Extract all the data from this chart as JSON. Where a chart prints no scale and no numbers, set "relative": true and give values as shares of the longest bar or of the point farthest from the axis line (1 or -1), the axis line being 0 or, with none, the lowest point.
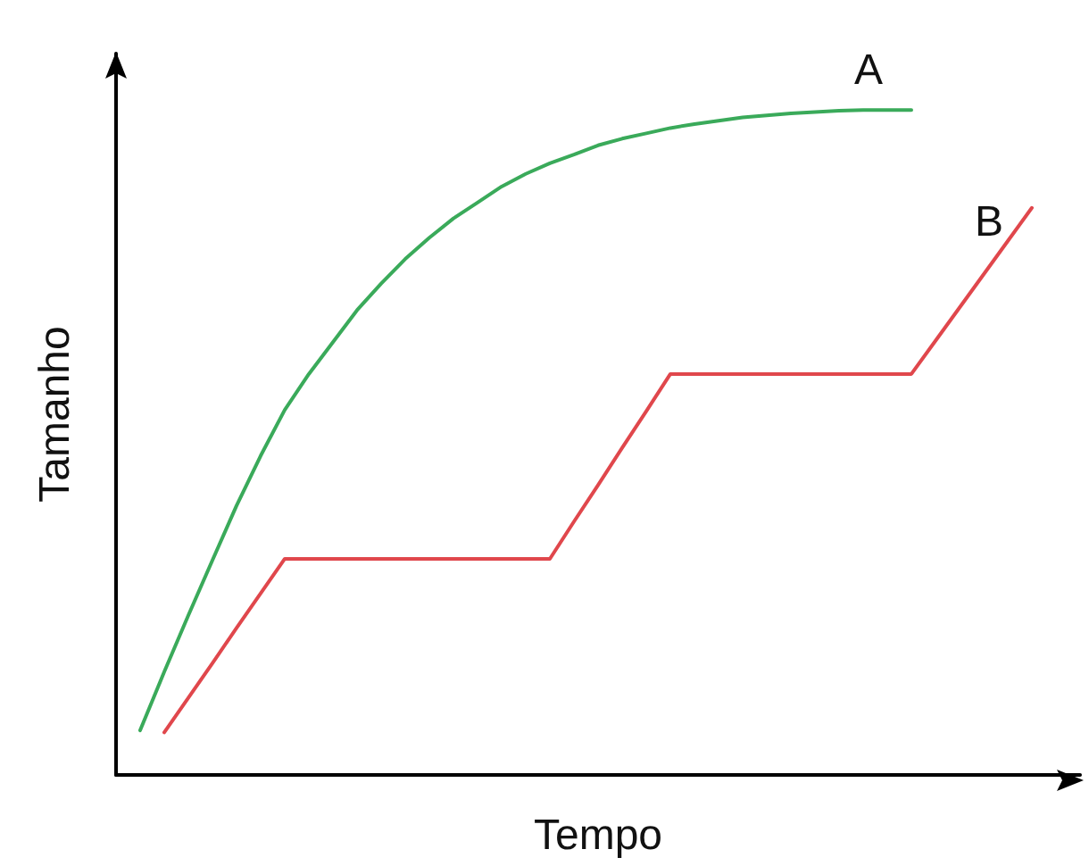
{
  "chart_data": {
    "type": "line",
    "relative": true,
    "xlabel": "Tempo",
    "ylabel": "Tamanho",
    "marker": "none",
    "line_style": "solid",
    "grid": false,
    "legend": false,
    "categories": [
      null,
      null,
      null,
      null,
      null,
      null,
      null,
      null,
      null,
      null,
      null,
      null,
      null,
      null,
      null,
      null,
      null,
      null,
      null,
      null,
      null,
      null,
      null,
      null,
      null,
      null,
      null,
      null,
      null,
      null,
      null,
      null,
      null,
      null,
      null,
      null,
      null,
      null,
      null,
      null,
      null
    ],
    "series": [
      {
        "name": "A",
        "color": "#3aaa5a",
        "values": [
          null,
          0.067,
          0.155,
          0.24,
          0.323,
          0.405,
          0.48,
          0.549,
          0.603,
          0.651,
          0.699,
          0.739,
          0.776,
          0.808,
          0.837,
          0.861,
          0.885,
          0.904,
          0.92,
          0.933,
          0.947,
          0.957,
          0.965,
          0.973,
          0.979,
          0.984,
          0.989,
          0.992,
          0.995,
          0.997,
          0.999,
          1,
          1,
          1,
          null,
          null,
          null,
          null,
          null,
          null,
          null
        ]
      },
      {
        "name": "B",
        "color": "#e0474c",
        "values": [
          null,
          null,
          0.064,
          0.116,
          0.168,
          0.221,
          0.273,
          0.325,
          0.325,
          0.325,
          0.325,
          0.325,
          0.325,
          0.325,
          0.325,
          0.325,
          0.325,
          0.325,
          0.325,
          0.381,
          0.436,
          0.492,
          0.547,
          0.603,
          0.603,
          0.603,
          0.603,
          0.603,
          0.603,
          0.603,
          0.603,
          0.603,
          0.603,
          0.603,
          0.653,
          0.703,
          0.753,
          0.803,
          0.853,
          null,
          null
        ]
      }
    ]
  }
}
